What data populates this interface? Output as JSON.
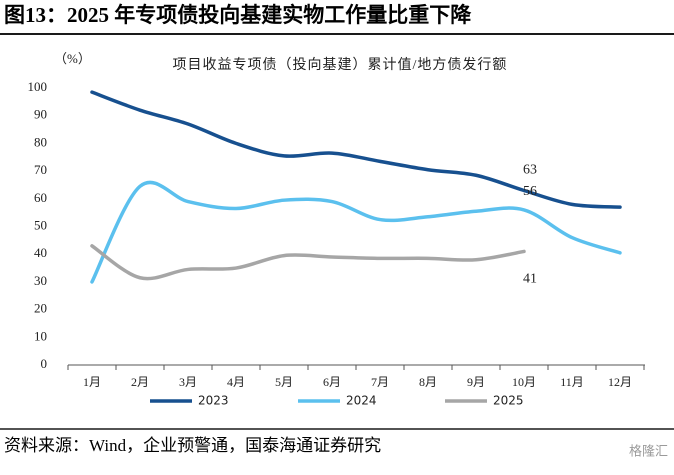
{
  "chart_data": {
    "type": "line",
    "title": "图13：2025 年专项债投向基建实物工作量比重下降",
    "subtitle": "项目收益专项债（投向基建）累计值/地方债发行额",
    "y_unit": "（%）",
    "categories": [
      "1月",
      "2月",
      "3月",
      "4月",
      "5月",
      "6月",
      "7月",
      "8月",
      "9月",
      "10月",
      "11月",
      "12月"
    ],
    "series": [
      {
        "name": "2023",
        "color": "#17508f",
        "values": [
          98.5,
          92,
          87,
          80,
          75.5,
          76.5,
          73.5,
          70.5,
          68.5,
          63,
          58,
          57
        ]
      },
      {
        "name": "2024",
        "color": "#5bc0ee",
        "values": [
          30,
          64.5,
          59,
          56.5,
          59.5,
          59,
          52.5,
          53.5,
          55.5,
          56,
          46,
          40.5
        ]
      },
      {
        "name": "2025",
        "color": "#a6a6a6",
        "values": [
          43,
          31.5,
          34.5,
          35,
          39.5,
          39,
          38.5,
          38.5,
          38,
          41,
          null,
          null
        ]
      }
    ],
    "labeled_points": [
      {
        "series": 0,
        "index": 9
      },
      {
        "series": 1,
        "index": 9
      },
      {
        "series": 2,
        "index": 9
      }
    ],
    "ylim": [
      0,
      100
    ],
    "yticks": [
      0,
      10,
      20,
      30,
      40,
      50,
      60,
      70,
      80,
      90,
      100
    ],
    "grid": false,
    "legend": "bottom",
    "source": "资料来源：Wind，企业预警通，国泰海通证券研究",
    "watermark": "格隆汇"
  }
}
